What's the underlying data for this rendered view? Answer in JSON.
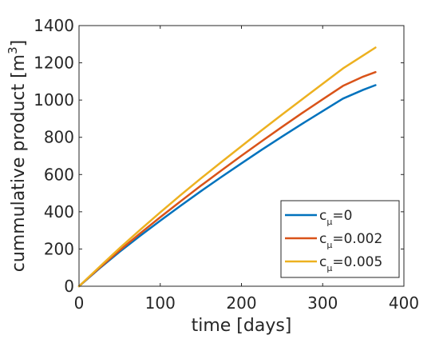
{
  "chart_data": {
    "type": "line",
    "xlabel": "time [days]",
    "ylabel": "cummulative product [m",
    "ylabel_superscript": "3",
    "ylabel_suffix": "]",
    "xlim": [
      0,
      400
    ],
    "ylim": [
      0,
      1400
    ],
    "xticks": [
      0,
      100,
      200,
      300,
      400
    ],
    "yticks": [
      0,
      200,
      400,
      600,
      800,
      1000,
      1200,
      1400
    ],
    "grid": false,
    "legend_position": "bottom-right",
    "x": [
      0,
      25,
      50,
      75,
      100,
      125,
      150,
      175,
      200,
      225,
      250,
      275,
      300,
      325,
      350,
      365
    ],
    "series": [
      {
        "name_base": "c",
        "name_sub": "μ",
        "name_rest": "=0",
        "color": "#0072BD",
        "values": [
          0,
          95,
          185,
          270,
          352,
          432,
          510,
          586,
          660,
          733,
          804,
          873,
          941,
          1008,
          1055,
          1080
        ]
      },
      {
        "name_base": "c",
        "name_sub": "μ",
        "name_rest": "=0.002",
        "color": "#D95319",
        "values": [
          0,
          98,
          193,
          283,
          371,
          456,
          540,
          621,
          701,
          779,
          856,
          931,
          1004,
          1076,
          1126,
          1150
        ]
      },
      {
        "name_base": "c",
        "name_sub": "μ",
        "name_rest": "=0.005",
        "color": "#EDB120",
        "values": [
          0,
          103,
          205,
          302,
          397,
          489,
          579,
          666,
          752,
          838,
          922,
          1005,
          1088,
          1170,
          1240,
          1282
        ]
      }
    ]
  }
}
